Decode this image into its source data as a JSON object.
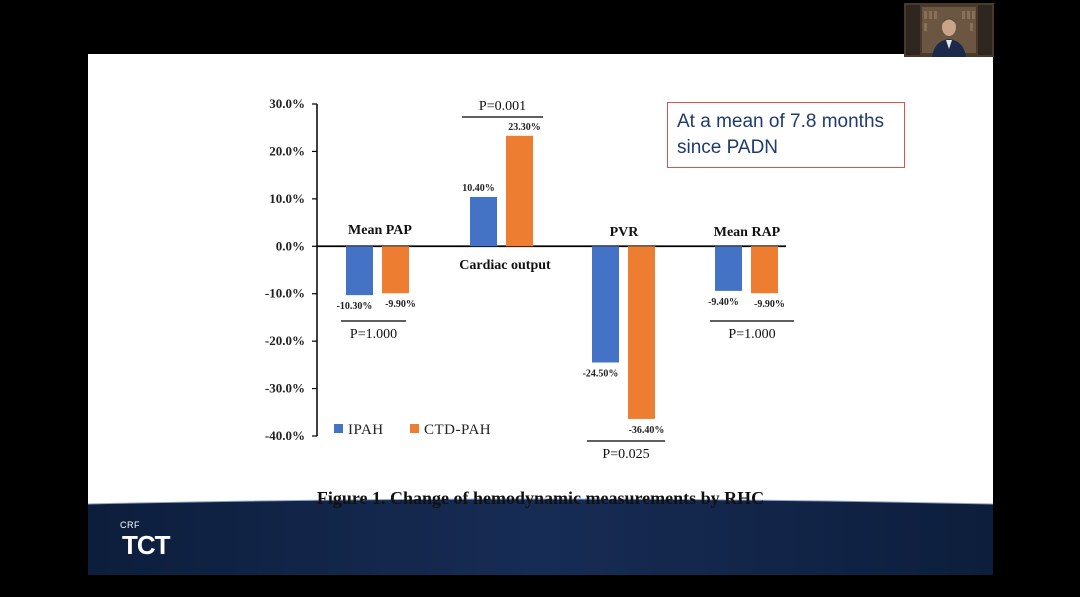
{
  "note": {
    "text": "At a mean of  7.8 months since PADN"
  },
  "caption": "Figure 1. Change of hemodynamic measurements by RHC",
  "logo": {
    "small": "CRF",
    "main": "TCT"
  },
  "chart_data": {
    "type": "bar",
    "ylim": [
      -40,
      30
    ],
    "yticks": [
      "30.0%",
      "20.0%",
      "10.0%",
      "0.0%",
      "-10.0%",
      "-20.0%",
      "-30.0%",
      "-40.0%"
    ],
    "categories": [
      "Mean PAP",
      "Cardiac output",
      "PVR",
      "Mean RAP"
    ],
    "series": [
      {
        "name": "IPAH",
        "color": "#4472c4",
        "values": [
          -10.3,
          10.4,
          -24.5,
          -9.4
        ],
        "labels": [
          "-10.30%",
          "10.40%",
          "-24.50%",
          "-9.40%"
        ]
      },
      {
        "name": "CTD-PAH",
        "color": "#ed7d31",
        "values": [
          -9.9,
          23.3,
          -36.4,
          -9.9
        ],
        "labels": [
          "-9.90%",
          "23.30%",
          "-36.40%",
          "-9.90%"
        ]
      }
    ],
    "pvalues": [
      "P=1.000",
      "P=0.001",
      "P=0.025",
      "P=1.000"
    ],
    "legend_position": "bottom-left",
    "grid": false
  }
}
